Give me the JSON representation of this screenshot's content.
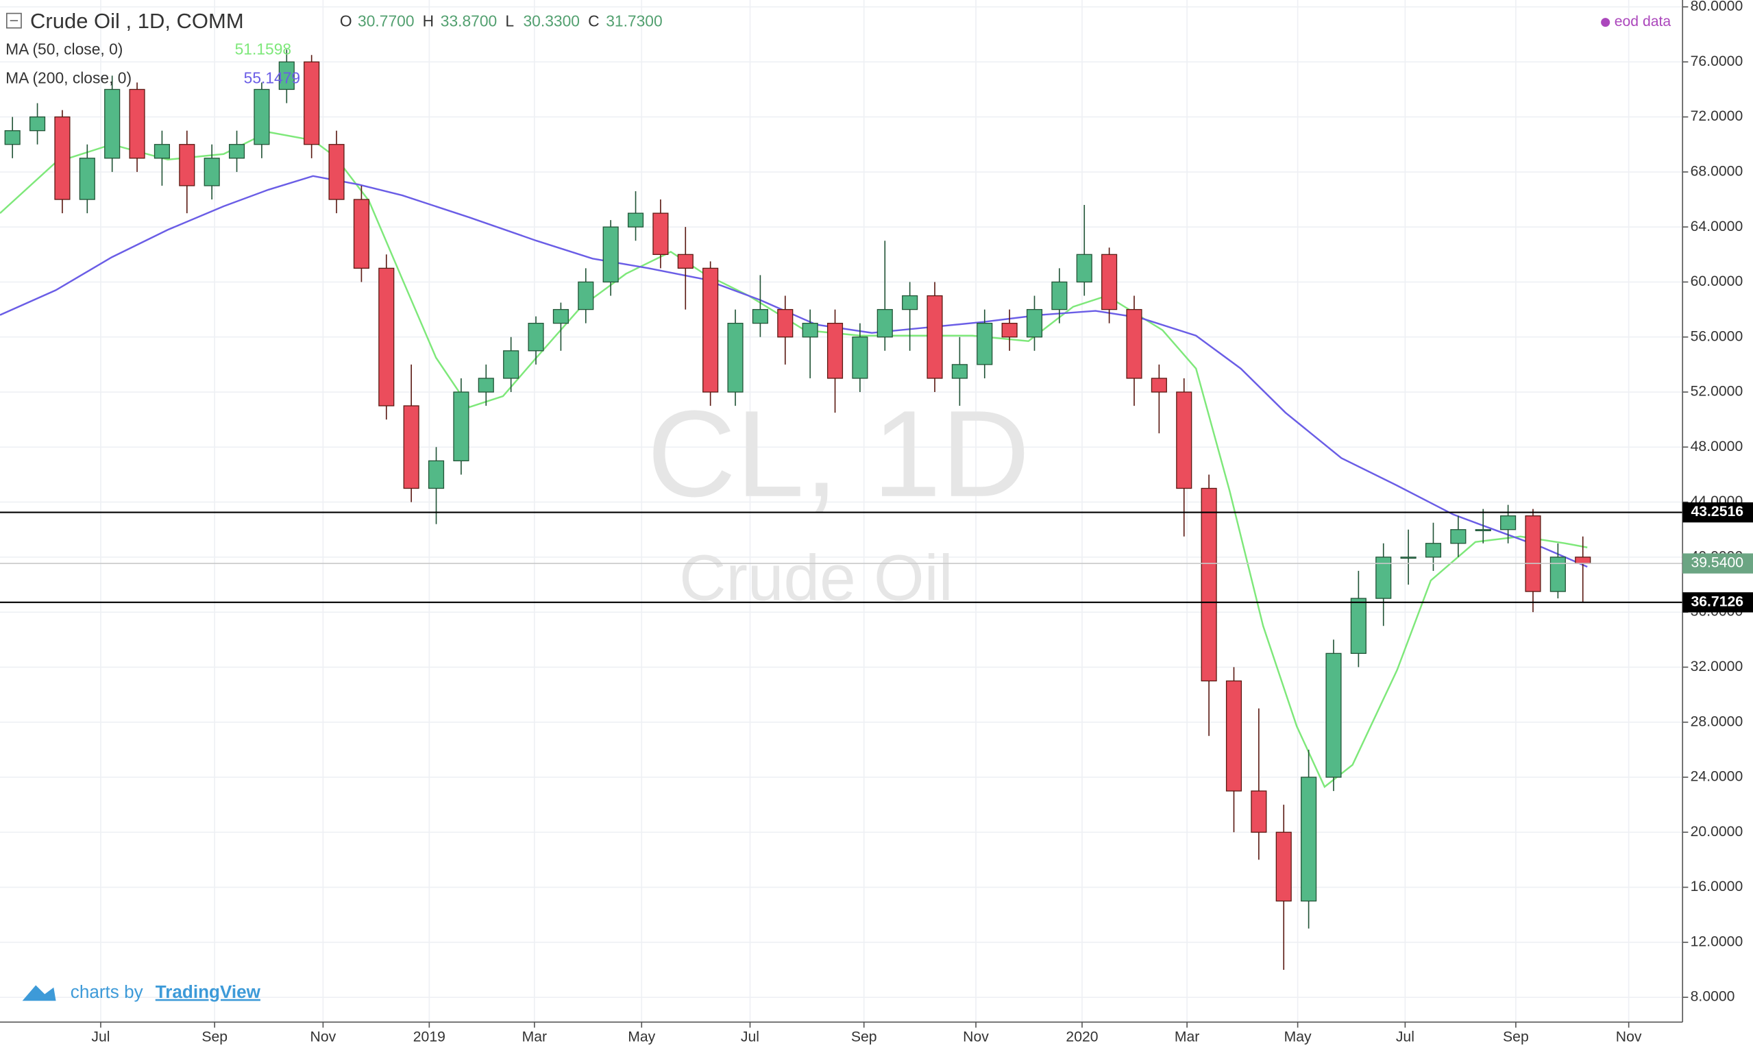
{
  "chart_data": {
    "type": "candlestick",
    "title": "Crude Oil , 1D, COMM",
    "ohlc": [
      {
        "name": "O",
        "label": "30.7700"
      },
      {
        "name": "H",
        "label": "33.8700"
      },
      {
        "name": "L",
        "label": "30.3300"
      },
      {
        "name": "C",
        "label": "31.7300"
      }
    ],
    "source": "eod data",
    "watermark": {
      "symbol": "CL, 1D",
      "name": "Crude Oil"
    },
    "branding": {
      "prefix": "charts by",
      "name": "TradingView"
    },
    "candles": {
      "up_color": "#53b987",
      "down_color": "#eb4d5c",
      "open": [
        70,
        71,
        72,
        66,
        69,
        74,
        69,
        70,
        67,
        69,
        70,
        74,
        76,
        70,
        66,
        61,
        51,
        45,
        47,
        52,
        53,
        55,
        57,
        58,
        60,
        64,
        65,
        62,
        61,
        52,
        57,
        58,
        56,
        57,
        53,
        56,
        58,
        59,
        53,
        54,
        57,
        56,
        58,
        60,
        62,
        58,
        53,
        52,
        45,
        31,
        23,
        20,
        15,
        24,
        33,
        37,
        40,
        40,
        41,
        42,
        42,
        43,
        37.5,
        40
      ],
      "high": [
        72,
        73,
        72.5,
        70,
        75,
        74.5,
        71,
        71,
        70,
        71,
        74.5,
        76.9,
        76.5,
        71,
        67,
        62,
        54,
        48,
        53,
        54,
        56,
        57.5,
        58.5,
        61,
        64.5,
        66.6,
        66,
        64,
        61.5,
        58,
        60.5,
        59,
        58,
        58,
        57,
        63,
        60,
        60,
        56,
        58,
        58,
        59,
        61,
        65.6,
        62.5,
        59,
        54,
        53,
        46,
        32,
        29,
        22,
        26,
        34,
        39,
        41,
        42,
        42.5,
        43,
        43.5,
        43.8,
        43.5,
        41,
        41.5
      ],
      "low": [
        69,
        70,
        65,
        65,
        68,
        68,
        67,
        65,
        66,
        68,
        69,
        73,
        69,
        65,
        60,
        50,
        44,
        42.4,
        46,
        51,
        52,
        54,
        55,
        57,
        59,
        63,
        61,
        58,
        51,
        51,
        56,
        54,
        53,
        50.5,
        52,
        55,
        55,
        52,
        51,
        53,
        55,
        55,
        57,
        59,
        57,
        51,
        49,
        41.5,
        27,
        20,
        18,
        10,
        13,
        23,
        32,
        35,
        38,
        39,
        40,
        41,
        41,
        36,
        37,
        36.7
      ],
      "close": [
        71,
        72,
        66,
        69,
        74,
        69,
        70,
        67,
        69,
        70,
        74,
        76,
        70,
        66,
        61,
        51,
        45,
        47,
        52,
        53,
        55,
        57,
        58,
        60,
        64,
        65,
        62,
        61,
        52,
        57,
        58,
        56,
        57,
        53,
        56,
        58,
        59,
        53,
        54,
        57,
        56,
        58,
        60,
        62,
        58,
        53,
        52,
        45,
        31,
        23,
        20,
        15,
        24,
        33,
        37,
        40,
        40,
        41,
        42,
        42,
        43,
        37.5,
        40,
        39.54
      ]
    },
    "series": [
      {
        "name": "MA (50, close, 0)",
        "value_label": "51.1598",
        "color": "#7ee87a",
        "x": [
          -0.5,
          1.74,
          3.98,
          6.23,
          8.47,
          10.26,
          12.06,
          12.95,
          14.3,
          15.64,
          16.99,
          18.33,
          19.68,
          21.02,
          22.82,
          24.61,
          26.41,
          27.75,
          29.54,
          31.79,
          34.03,
          36.27,
          38.51,
          40.76,
          42.55,
          43.9,
          46.14,
          47.48,
          48.83,
          50.17,
          51.52,
          52.64,
          53.76,
          55.55,
          56.9,
          58.69,
          60.49,
          62.28,
          63.18
        ],
        "values": [
          65,
          68.7,
          70,
          68.9,
          69.3,
          70.9,
          70.3,
          69.1,
          65.9,
          60.2,
          54.5,
          50.9,
          51.7,
          54.5,
          58.2,
          60.6,
          62.2,
          60.6,
          59,
          56.5,
          56.1,
          56.1,
          56.1,
          55.7,
          58.2,
          59,
          56.5,
          53.7,
          44.8,
          35,
          27.7,
          23.3,
          24.9,
          31.8,
          38.3,
          41.1,
          41.5,
          41,
          40.7
        ]
      },
      {
        "name": "MA (200, close, 0)",
        "value_label": "55.1479",
        "color": "#6a5de6",
        "x": [
          -0.5,
          1.74,
          3.98,
          6.23,
          8.47,
          10.26,
          12.06,
          13.85,
          15.64,
          18.33,
          21.02,
          23.27,
          25.51,
          27.75,
          29.99,
          32.24,
          34.48,
          36.72,
          38.96,
          41.2,
          43.45,
          45.24,
          47.48,
          49.28,
          51.07,
          53.31,
          55.55,
          57.8,
          59.59,
          61.38,
          63.18
        ],
        "values": [
          57.6,
          59.4,
          61.8,
          63.8,
          65.5,
          66.7,
          67.7,
          67.1,
          66.3,
          64.7,
          63,
          61.7,
          61,
          60.2,
          58.7,
          56.9,
          56.3,
          56.7,
          57.1,
          57.6,
          57.9,
          57.4,
          56.1,
          53.7,
          50.5,
          47.2,
          45.2,
          43.1,
          41.9,
          40.7,
          39.3
        ]
      }
    ],
    "hlines": [
      {
        "value": 43.2516,
        "label": "43.2516"
      },
      {
        "value": 36.7126,
        "label": "36.7126"
      }
    ],
    "last_price": {
      "value": 39.54,
      "label": "39.5400",
      "color": "#6ba583"
    },
    "xlim": [
      -0.5,
      67
    ],
    "xticks": [
      {
        "value": 3.54,
        "label": "Jul"
      },
      {
        "value": 8.11,
        "label": "Sep"
      },
      {
        "value": 12.46,
        "label": "Nov"
      },
      {
        "value": 16.72,
        "label": "2019"
      },
      {
        "value": 20.94,
        "label": "Mar"
      },
      {
        "value": 25.24,
        "label": "May"
      },
      {
        "value": 29.59,
        "label": "Jul"
      },
      {
        "value": 34.16,
        "label": "Sep"
      },
      {
        "value": 38.65,
        "label": "Nov"
      },
      {
        "value": 42.91,
        "label": "2020"
      },
      {
        "value": 47.12,
        "label": "Mar"
      },
      {
        "value": 51.56,
        "label": "May"
      },
      {
        "value": 55.87,
        "label": "Jul"
      },
      {
        "value": 60.31,
        "label": "Sep"
      },
      {
        "value": 64.84,
        "label": "Nov"
      }
    ],
    "ylim": [
      6.2,
      80.5
    ],
    "yticks": [
      {
        "value": 8,
        "label": "8.0000"
      },
      {
        "value": 12,
        "label": "12.0000"
      },
      {
        "value": 16,
        "label": "16.0000"
      },
      {
        "value": 20,
        "label": "20.0000"
      },
      {
        "value": 24,
        "label": "24.0000"
      },
      {
        "value": 28,
        "label": "28.0000"
      },
      {
        "value": 32,
        "label": "32.0000"
      },
      {
        "value": 36,
        "label": "36.0000"
      },
      {
        "value": 40,
        "label": "40.0000"
      },
      {
        "value": 44,
        "label": "44.0000"
      },
      {
        "value": 48,
        "label": "48.0000"
      },
      {
        "value": 52,
        "label": "52.0000"
      },
      {
        "value": 56,
        "label": "56.0000"
      },
      {
        "value": 60,
        "label": "60.0000"
      },
      {
        "value": 64,
        "label": "64.0000"
      },
      {
        "value": 68,
        "label": "68.0000"
      },
      {
        "value": 72,
        "label": "72.0000"
      },
      {
        "value": 76,
        "label": "76.0000"
      },
      {
        "value": 80,
        "label": "80.0000"
      }
    ],
    "grid": true
  }
}
